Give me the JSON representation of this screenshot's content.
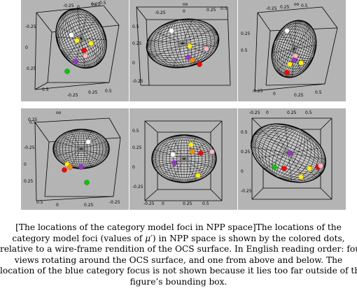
{
  "figure": {
    "panels": [
      {
        "id": "p1",
        "axis_title": "oo",
        "ticks": [
          "-0.25",
          "0",
          "0.25",
          "0.5",
          "-0.25",
          "0",
          "0.25",
          "0.5",
          "-0.25",
          "0.25",
          "0.5"
        ]
      },
      {
        "id": "p2",
        "axis_title": "oo",
        "ticks": [
          "-0.25",
          "0",
          "0.25",
          "0.5",
          "0.5",
          "0.25",
          "0",
          "-0.25"
        ]
      },
      {
        "id": "p3",
        "axis_title": "oo",
        "ticks": [
          "-0.25",
          "0.25",
          "0.5",
          "0.25",
          "0.5",
          "-0.25",
          "0",
          "0.25",
          "0.5"
        ]
      },
      {
        "id": "p4",
        "axis_title": "oo",
        "ticks": [
          "0.25",
          "0.5",
          "-0.25",
          "0",
          "0.25",
          "0.5",
          "0",
          "0.25",
          "-0.25"
        ]
      },
      {
        "id": "p5",
        "axis_title": "",
        "ticks": [
          "-0.25",
          "0",
          "0.25",
          "0.5",
          "0.5",
          "0.25",
          "0",
          "-0.25"
        ]
      },
      {
        "id": "p6",
        "axis_title": "",
        "ticks": [
          "-0.25",
          "0",
          "0.25",
          "0.5",
          "0.5",
          "0.25",
          "0",
          "-0.25"
        ]
      }
    ],
    "dot_colors": {
      "red": "#ff0000",
      "green": "#00cc00",
      "yellow": "#ffee00",
      "purple": "#9933cc",
      "white": "#ffffff",
      "pink": "#ffb6c1",
      "orange": "#ff8c00"
    }
  },
  "caption": {
    "line1_pre": "[The locations of the category model foci in NPP space]The locations of the",
    "line2_pre": "category model foci (values of ",
    "line2_mu": "μ′",
    "line2_post": ") in NPP space is shown by the colored dots,",
    "line3": "relative to a wire-frame rendition of the OCS surface. In English reading order: four",
    "line4": "views rotating around the OCS surface, and one from above and below. The",
    "line5": "location of the blue category focus is not shown because it lies too far outside of the",
    "line6": "figure’s bounding box."
  }
}
